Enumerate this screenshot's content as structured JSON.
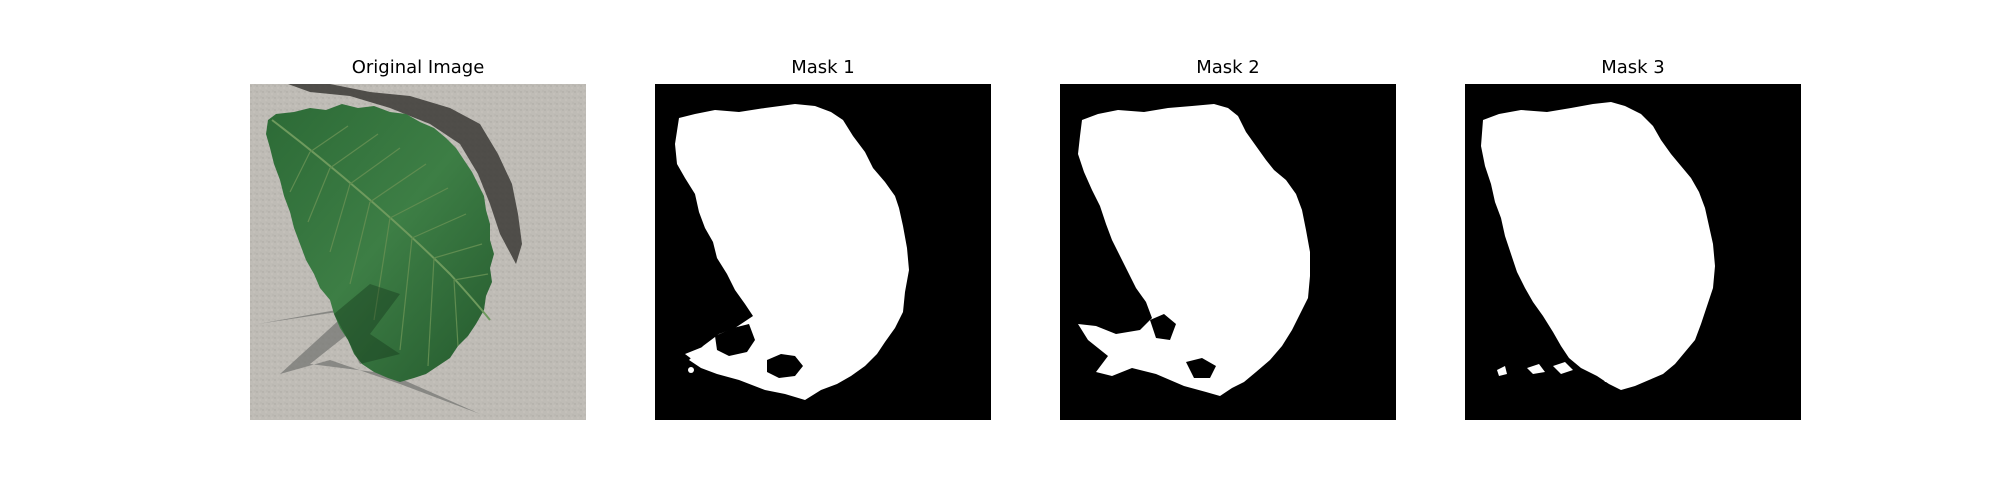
{
  "figure": {
    "panels": [
      {
        "title": "Original Image"
      },
      {
        "title": "Mask 1"
      },
      {
        "title": "Mask 2"
      },
      {
        "title": "Mask 3"
      }
    ]
  },
  "colors": {
    "background": "#ffffff",
    "mask_background": "#000000",
    "mask_foreground": "#ffffff",
    "leaf": "#2f6e3b",
    "leaf_dark": "#1f4d2a",
    "surface": "#bcb9b3",
    "shadow": "#6f6f6f"
  }
}
